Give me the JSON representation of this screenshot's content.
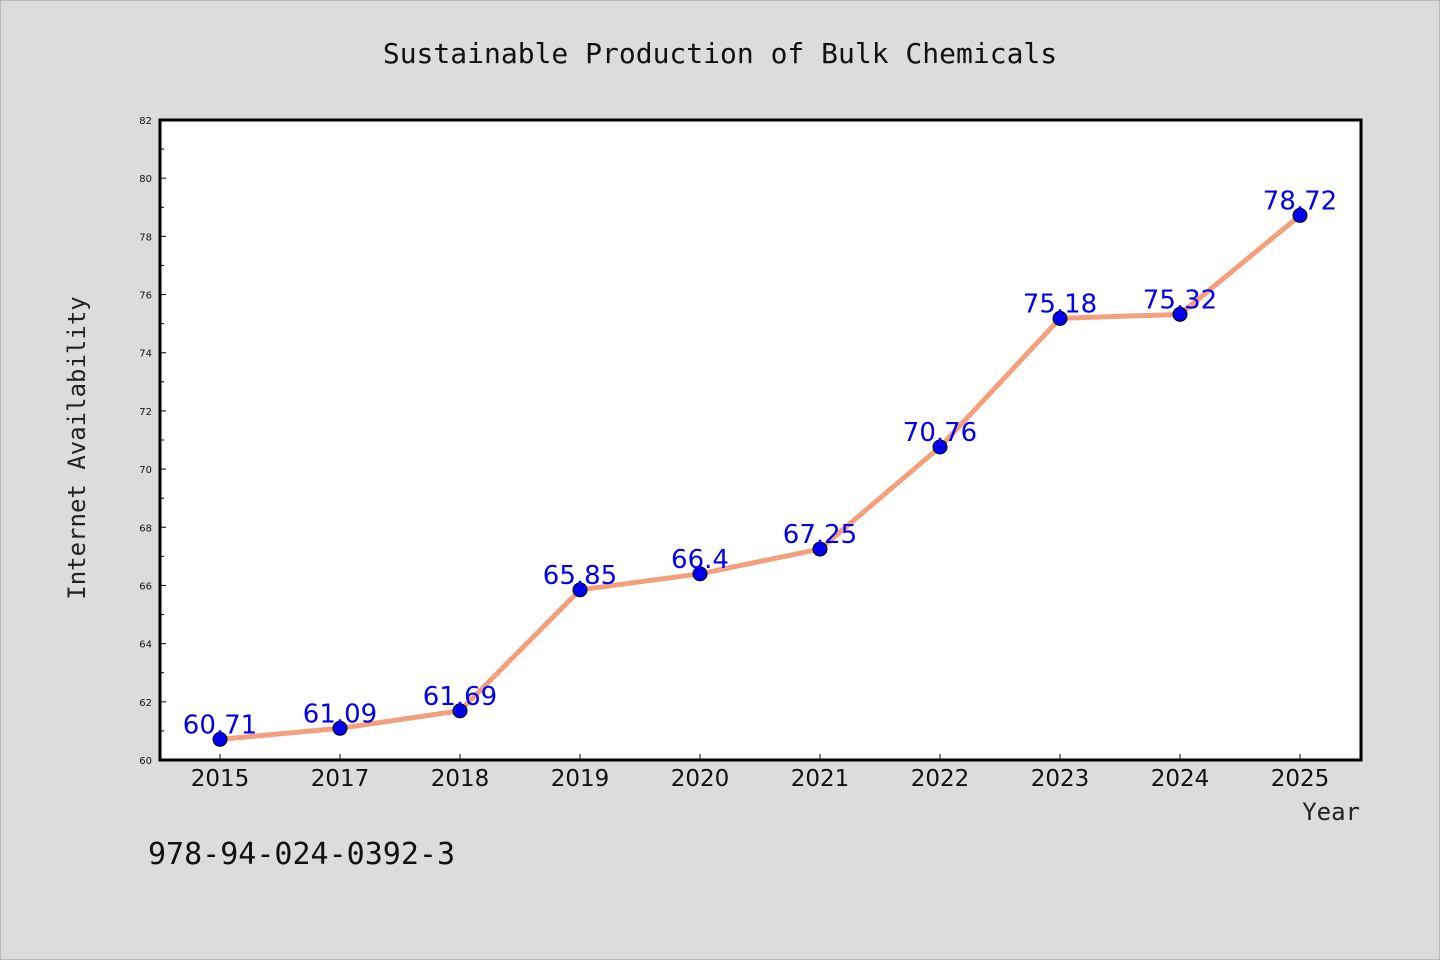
{
  "chart_data": {
    "type": "line",
    "title": "Sustainable Production of Bulk Chemicals",
    "xlabel": "Year",
    "ylabel": "Internet Availability",
    "categories": [
      "2015",
      "2017",
      "2018",
      "2019",
      "2020",
      "2021",
      "2022",
      "2023",
      "2024",
      "2025"
    ],
    "series": [
      {
        "values": [
          60.71,
          61.09,
          61.69,
          65.85,
          66.4,
          67.25,
          70.76,
          75.18,
          75.32,
          78.72
        ],
        "labels": [
          "60.71",
          "61.09",
          "61.69",
          "65.85",
          "66.4",
          "67.25",
          "70.76",
          "75.18",
          "75.32",
          "78.72"
        ]
      }
    ],
    "ylim": [
      60,
      82
    ],
    "yticks": [
      60,
      62,
      64,
      66,
      68,
      70,
      72,
      74,
      76,
      78,
      80,
      82
    ],
    "grid": false,
    "line_color": "#f4a07c",
    "marker_color": "#0000ee",
    "label_color": "#0000ee"
  },
  "footnote": "978-94-024-0392-3"
}
